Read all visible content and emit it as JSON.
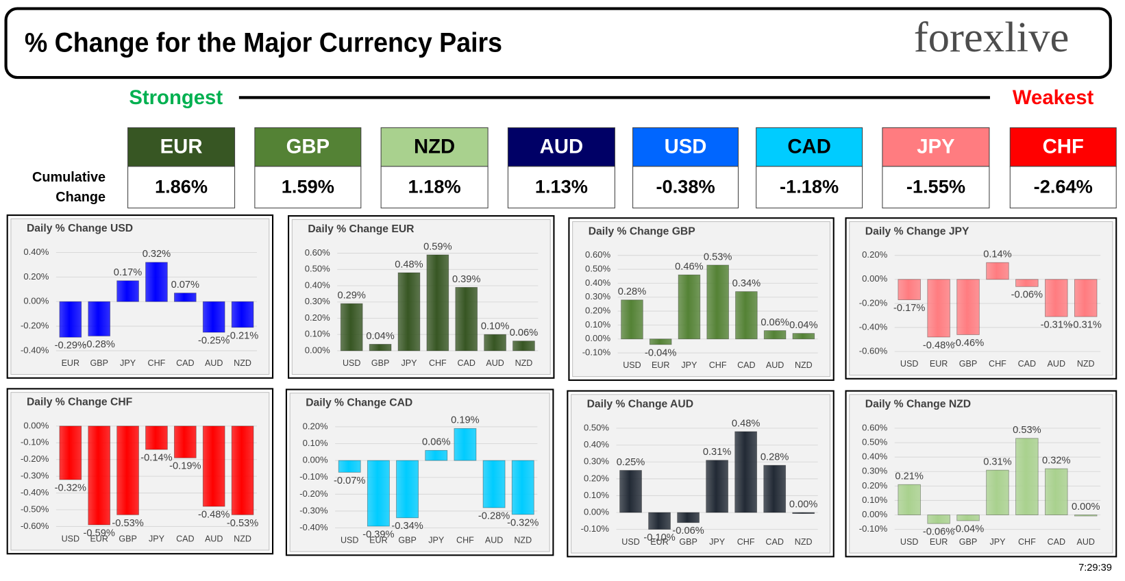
{
  "header": {
    "title": "% Change for the Major Currency Pairs",
    "brand": "forexlive"
  },
  "scale": {
    "strongest": "Strongest",
    "weakest": "Weakest"
  },
  "cumulative": {
    "label": [
      "Cumulative",
      "Change"
    ],
    "currencies": [
      {
        "name": "EUR",
        "change": "1.86%",
        "color": "#375623",
        "text_color": "#ffffff"
      },
      {
        "name": "GBP",
        "change": "1.59%",
        "color": "#548235",
        "text_color": "#ffffff"
      },
      {
        "name": "NZD",
        "change": "1.18%",
        "color": "#a9d18e",
        "text_color": "#000000"
      },
      {
        "name": "AUD",
        "change": "1.13%",
        "color": "#000066",
        "text_color": "#ffffff"
      },
      {
        "name": "USD",
        "change": "-0.38%",
        "color": "#0066ff",
        "text_color": "#ffffff"
      },
      {
        "name": "CAD",
        "change": "-1.18%",
        "color": "#00ccff",
        "text_color": "#000000"
      },
      {
        "name": "JPY",
        "change": "-1.55%",
        "color": "#ff7c80",
        "text_color": "#ffffff"
      },
      {
        "name": "CHF",
        "change": "-2.64%",
        "color": "#ff0000",
        "text_color": "#ffffff"
      }
    ]
  },
  "chart_data": [
    {
      "type": "bar",
      "title": "Daily % Change USD",
      "color": "#0000ff",
      "grid": true,
      "categories": [
        "EUR",
        "GBP",
        "JPY",
        "CHF",
        "CAD",
        "AUD",
        "NZD"
      ],
      "values": [
        -0.29,
        -0.28,
        0.17,
        0.32,
        0.07,
        -0.25,
        -0.21
      ],
      "value_labels": [
        "-0.29%",
        "-0.28%",
        "0.17%",
        "0.32%",
        "0.07%",
        "-0.25%",
        "-0.21%"
      ],
      "ylim": [
        -0.4,
        0.4
      ],
      "yticks": [
        {
          "value": -0.4,
          "label": "-0.40%"
        },
        {
          "value": -0.2,
          "label": "-0.20%"
        },
        {
          "value": 0,
          "label": "0.00%"
        },
        {
          "value": 0.2,
          "label": "0.20%"
        },
        {
          "value": 0.4,
          "label": "0.40%"
        }
      ]
    },
    {
      "type": "bar",
      "title": "Daily % Change EUR",
      "color": "#375623",
      "grid": true,
      "categories": [
        "USD",
        "GBP",
        "JPY",
        "CHF",
        "CAD",
        "AUD",
        "NZD"
      ],
      "values": [
        0.29,
        0.04,
        0.48,
        0.59,
        0.39,
        0.1,
        0.06
      ],
      "value_labels": [
        "0.29%",
        "0.04%",
        "0.48%",
        "0.59%",
        "0.39%",
        "0.10%",
        "0.06%"
      ],
      "ylim": [
        0,
        0.6
      ],
      "yticks": [
        {
          "value": 0,
          "label": "0.00%"
        },
        {
          "value": 0.1,
          "label": "0.10%"
        },
        {
          "value": 0.2,
          "label": "0.20%"
        },
        {
          "value": 0.3,
          "label": "0.30%"
        },
        {
          "value": 0.4,
          "label": "0.40%"
        },
        {
          "value": 0.5,
          "label": "0.50%"
        },
        {
          "value": 0.6,
          "label": "0.60%"
        }
      ]
    },
    {
      "type": "bar",
      "title": "Daily % Change GBP",
      "color": "#548235",
      "grid": true,
      "categories": [
        "USD",
        "EUR",
        "JPY",
        "CHF",
        "CAD",
        "AUD",
        "NZD"
      ],
      "values": [
        0.28,
        -0.04,
        0.46,
        0.53,
        0.34,
        0.06,
        0.04
      ],
      "value_labels": [
        "0.28%",
        "-0.04%",
        "0.46%",
        "0.53%",
        "0.34%",
        "0.06%",
        "0.04%"
      ],
      "ylim": [
        -0.1,
        0.6
      ],
      "yticks": [
        {
          "value": -0.1,
          "label": "-0.10%"
        },
        {
          "value": 0,
          "label": "0.00%"
        },
        {
          "value": 0.1,
          "label": "0.10%"
        },
        {
          "value": 0.2,
          "label": "0.20%"
        },
        {
          "value": 0.3,
          "label": "0.30%"
        },
        {
          "value": 0.4,
          "label": "0.40%"
        },
        {
          "value": 0.5,
          "label": "0.50%"
        },
        {
          "value": 0.6,
          "label": "0.60%"
        }
      ]
    },
    {
      "type": "bar",
      "title": "Daily % Change JPY",
      "color": "#ff7c80",
      "grid": true,
      "categories": [
        "USD",
        "EUR",
        "GBP",
        "CHF",
        "CAD",
        "AUD",
        "NZD"
      ],
      "values": [
        -0.17,
        -0.48,
        -0.46,
        0.14,
        -0.06,
        -0.31,
        -0.31
      ],
      "value_labels": [
        "-0.17%",
        "-0.48%",
        "-0.46%",
        "0.14%",
        "-0.06%",
        "-0.31%",
        "-0.31%"
      ],
      "ylim": [
        -0.6,
        0.2
      ],
      "yticks": [
        {
          "value": -0.6,
          "label": "-0.60%"
        },
        {
          "value": -0.4,
          "label": "-0.40%"
        },
        {
          "value": -0.2,
          "label": "-0.20%"
        },
        {
          "value": 0,
          "label": "0.00%"
        },
        {
          "value": 0.2,
          "label": "0.20%"
        }
      ]
    },
    {
      "type": "bar",
      "title": "Daily % Change CHF",
      "color": "#ff0000",
      "grid": true,
      "categories": [
        "USD",
        "EUR",
        "GBP",
        "JPY",
        "CAD",
        "AUD",
        "NZD"
      ],
      "values": [
        -0.32,
        -0.59,
        -0.53,
        -0.14,
        -0.19,
        -0.48,
        -0.53
      ],
      "value_labels": [
        "-0.32%",
        "-0.59%",
        "-0.53%",
        "-0.14%",
        "-0.19%",
        "-0.48%",
        "-0.53%"
      ],
      "ylim": [
        -0.6,
        0
      ],
      "yticks": [
        {
          "value": -0.6,
          "label": "-0.60%"
        },
        {
          "value": -0.5,
          "label": "-0.50%"
        },
        {
          "value": -0.4,
          "label": "-0.40%"
        },
        {
          "value": -0.3,
          "label": "-0.30%"
        },
        {
          "value": -0.2,
          "label": "-0.20%"
        },
        {
          "value": -0.1,
          "label": "-0.10%"
        },
        {
          "value": 0,
          "label": "0.00%"
        }
      ]
    },
    {
      "type": "bar",
      "title": "Daily % Change CAD",
      "color": "#00ccff",
      "grid": true,
      "categories": [
        "USD",
        "EUR",
        "GBP",
        "JPY",
        "CHF",
        "AUD",
        "NZD"
      ],
      "values": [
        -0.07,
        -0.39,
        -0.34,
        0.06,
        0.19,
        -0.28,
        -0.32
      ],
      "value_labels": [
        "-0.07%",
        "-0.39%",
        "-0.34%",
        "0.06%",
        "0.19%",
        "-0.28%",
        "-0.32%"
      ],
      "ylim": [
        -0.4,
        0.2
      ],
      "yticks": [
        {
          "value": -0.4,
          "label": "-0.40%"
        },
        {
          "value": -0.3,
          "label": "-0.30%"
        },
        {
          "value": -0.2,
          "label": "-0.20%"
        },
        {
          "value": -0.1,
          "label": "-0.10%"
        },
        {
          "value": 0,
          "label": "0.00%"
        },
        {
          "value": 0.1,
          "label": "0.10%"
        },
        {
          "value": 0.2,
          "label": "0.20%"
        }
      ]
    },
    {
      "type": "bar",
      "title": "Daily % Change AUD",
      "color": "#222a35",
      "grid": true,
      "categories": [
        "USD",
        "EUR",
        "GBP",
        "JPY",
        "CHF",
        "CAD",
        "NZD"
      ],
      "values": [
        0.25,
        -0.1,
        -0.06,
        0.31,
        0.48,
        0.28,
        0.0
      ],
      "value_labels": [
        "0.25%",
        "-0.10%",
        "-0.06%",
        "0.31%",
        "0.48%",
        "0.28%",
        "0.00%"
      ],
      "ylim": [
        -0.1,
        0.5
      ],
      "yticks": [
        {
          "value": -0.1,
          "label": "-0.10%"
        },
        {
          "value": 0,
          "label": "0.00%"
        },
        {
          "value": 0.1,
          "label": "0.10%"
        },
        {
          "value": 0.2,
          "label": "0.20%"
        },
        {
          "value": 0.3,
          "label": "0.30%"
        },
        {
          "value": 0.4,
          "label": "0.40%"
        },
        {
          "value": 0.5,
          "label": "0.50%"
        }
      ]
    },
    {
      "type": "bar",
      "title": "Daily % Change NZD",
      "color": "#a9d18e",
      "grid": true,
      "categories": [
        "USD",
        "EUR",
        "GBP",
        "JPY",
        "CHF",
        "CAD",
        "AUD"
      ],
      "values": [
        0.21,
        -0.06,
        -0.04,
        0.31,
        0.53,
        0.32,
        0.0
      ],
      "value_labels": [
        "0.21%",
        "-0.06%",
        "-0.04%",
        "0.31%",
        "0.53%",
        "0.32%",
        "0.00%"
      ],
      "ylim": [
        -0.1,
        0.6
      ],
      "yticks": [
        {
          "value": -0.1,
          "label": "-0.10%"
        },
        {
          "value": 0,
          "label": "0.00%"
        },
        {
          "value": 0.1,
          "label": "0.10%"
        },
        {
          "value": 0.2,
          "label": "0.20%"
        },
        {
          "value": 0.3,
          "label": "0.30%"
        },
        {
          "value": 0.4,
          "label": "0.40%"
        },
        {
          "value": 0.5,
          "label": "0.50%"
        },
        {
          "value": 0.6,
          "label": "0.60%"
        }
      ]
    }
  ],
  "timestamp": "7:29:39"
}
